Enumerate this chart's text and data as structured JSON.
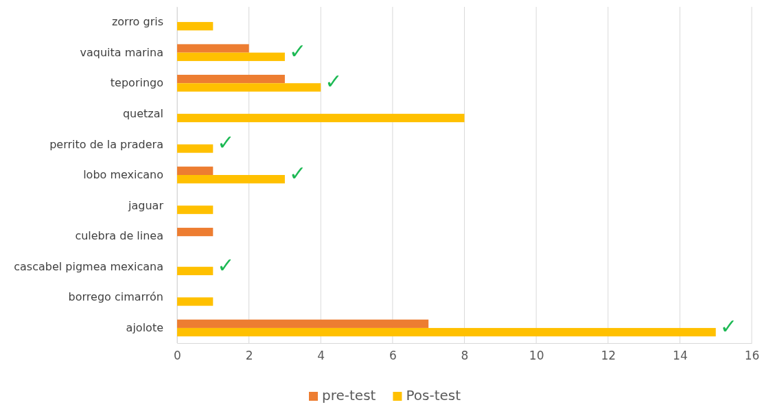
{
  "chart_data": {
    "type": "bar",
    "orientation": "horizontal",
    "categories": [
      "zorro gris",
      "vaquita marina",
      "teporingo",
      "quetzal",
      "perrito de la pradera",
      "lobo mexicano",
      "jaguar",
      "culebra de linea",
      "cascabel pigmea mexicana",
      "borrego cimarrón",
      "ajolote"
    ],
    "series": [
      {
        "name": "pre-test",
        "color": "#ed7d31",
        "values": [
          null,
          2,
          3,
          null,
          null,
          1,
          null,
          1,
          null,
          null,
          7
        ]
      },
      {
        "name": "Pos-test",
        "color": "#ffc000",
        "values": [
          1,
          3,
          4,
          8,
          1,
          3,
          1,
          null,
          1,
          1,
          15
        ]
      }
    ],
    "xlim": [
      0,
      16
    ],
    "xticks": [
      0,
      2,
      4,
      6,
      8,
      10,
      12,
      14,
      16
    ],
    "grid": "x",
    "legend": "bottom",
    "annotations": [
      {
        "text": "✓",
        "x": 3,
        "y": "vaquita marina"
      },
      {
        "text": "✓",
        "x": 4,
        "y": "teporingo"
      },
      {
        "text": "✓",
        "x": 1,
        "y": "perrito de la pradera"
      },
      {
        "text": "✓",
        "x": 3,
        "y": "lobo mexicano"
      },
      {
        "text": "✓",
        "x": 1,
        "y": "cascabel pigmea mexicana"
      },
      {
        "text": "✓",
        "x": 15,
        "y": "ajolote"
      }
    ]
  }
}
